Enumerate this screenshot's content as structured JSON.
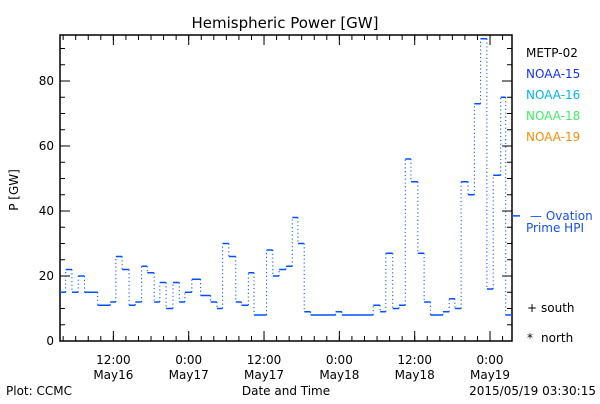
{
  "chart_data": {
    "type": "line",
    "title": "Hemispheric Power [GW]",
    "xlabel": "Date and Time",
    "ylabel": "P [GW]",
    "x_units": "hours since 2015/05/16 03:30",
    "xlim": [
      0,
      72
    ],
    "ylim": [
      0,
      95
    ],
    "yticks": [
      0,
      20,
      40,
      60,
      80
    ],
    "xticks": [
      {
        "hour": 8.5,
        "line1": "12:00",
        "line2": "May16"
      },
      {
        "hour": 20.5,
        "line1": "0:00",
        "line2": "May17"
      },
      {
        "hour": 32.5,
        "line1": "12:00",
        "line2": "May17"
      },
      {
        "hour": 44.5,
        "line1": "0:00",
        "line2": "May18"
      },
      {
        "hour": 56.5,
        "line1": "12:00",
        "line2": "May18"
      },
      {
        "hour": 68.5,
        "line1": "0:00",
        "line2": "May19"
      }
    ],
    "legend": [
      {
        "label": "METP-02",
        "color": "#000000"
      },
      {
        "label": "NOAA-15",
        "color": "#1432ff"
      },
      {
        "label": "NOAA-16",
        "color": "#00b4ff"
      },
      {
        "label": "NOAA-18",
        "color": "#3cf064"
      },
      {
        "label": "NOAA-19",
        "color": "#ff8c00"
      }
    ],
    "legend_placement": "right",
    "series": [
      {
        "name": "Ovation Prime HPI",
        "color": "#0050ff",
        "style": "step",
        "end_hour": 72,
        "steps": [
          [
            0.0,
            15
          ],
          [
            0.9,
            22
          ],
          [
            1.9,
            15
          ],
          [
            2.9,
            20
          ],
          [
            3.9,
            15
          ],
          [
            6.0,
            11
          ],
          [
            8.0,
            12
          ],
          [
            8.9,
            26
          ],
          [
            9.9,
            22
          ],
          [
            11.0,
            11
          ],
          [
            12.0,
            12
          ],
          [
            13.0,
            23
          ],
          [
            13.9,
            21
          ],
          [
            15.0,
            12
          ],
          [
            15.9,
            18
          ],
          [
            16.9,
            10
          ],
          [
            18.0,
            18
          ],
          [
            19.0,
            12
          ],
          [
            19.9,
            15
          ],
          [
            21.0,
            19
          ],
          [
            22.4,
            14
          ],
          [
            24.0,
            12
          ],
          [
            25.0,
            10
          ],
          [
            25.9,
            30
          ],
          [
            26.9,
            26
          ],
          [
            28.0,
            12
          ],
          [
            28.9,
            11
          ],
          [
            30.0,
            21
          ],
          [
            30.9,
            8
          ],
          [
            32.9,
            28
          ],
          [
            33.9,
            20
          ],
          [
            34.9,
            22
          ],
          [
            36.0,
            23
          ],
          [
            37.0,
            38
          ],
          [
            37.9,
            30
          ],
          [
            38.9,
            9
          ],
          [
            39.9,
            8
          ],
          [
            43.9,
            9
          ],
          [
            44.9,
            8
          ],
          [
            49.9,
            11
          ],
          [
            51.0,
            9
          ],
          [
            51.9,
            27
          ],
          [
            53.0,
            10
          ],
          [
            54.0,
            11
          ],
          [
            55.0,
            56
          ],
          [
            55.9,
            49
          ],
          [
            57.0,
            27
          ],
          [
            58.0,
            12
          ],
          [
            59.0,
            8
          ],
          [
            61.0,
            9
          ],
          [
            62.0,
            13
          ],
          [
            62.9,
            10
          ],
          [
            63.9,
            49
          ],
          [
            65.0,
            45
          ],
          [
            66.0,
            73
          ],
          [
            67.0,
            93
          ],
          [
            68.0,
            16
          ],
          [
            69.0,
            51
          ],
          [
            70.2,
            75
          ],
          [
            71.0,
            8
          ]
        ]
      }
    ],
    "hpi_marker_value": 38.5,
    "hpi_label_line1": "— Ovation",
    "hpi_label_line2": "Prime HPI",
    "symbol_legend": [
      {
        "symbol": "+",
        "label": "south"
      },
      {
        "symbol": "*",
        "label": "north"
      }
    ]
  },
  "footer": {
    "left": "Plot: CCMC",
    "right": "2015/05/19 03:30:15"
  }
}
